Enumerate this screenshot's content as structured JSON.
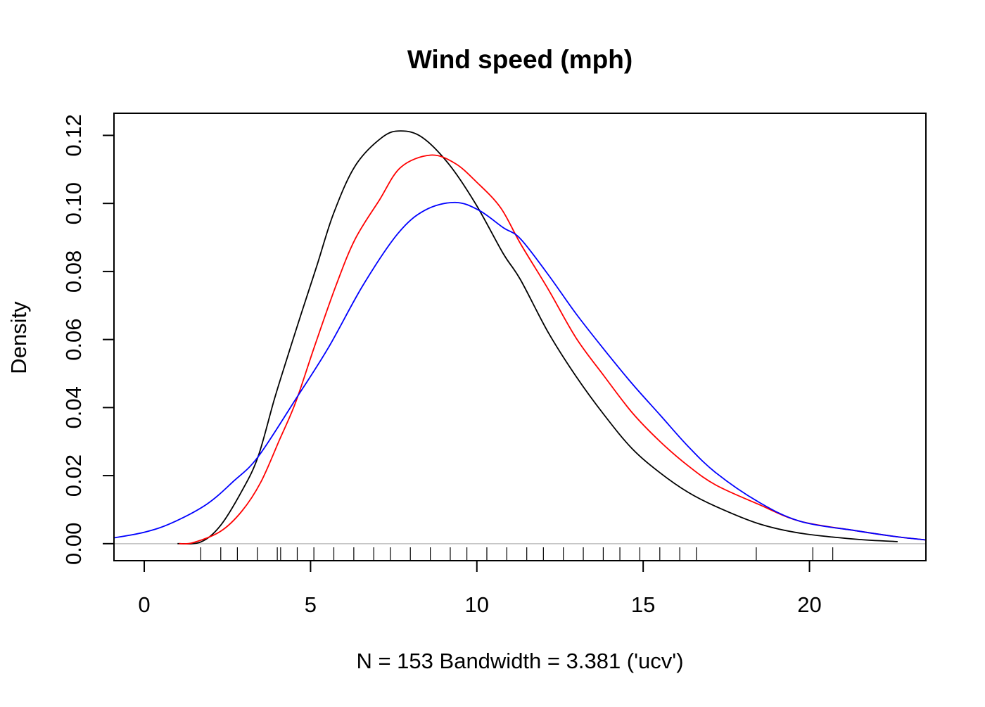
{
  "chart_data": {
    "type": "line",
    "title": "Wind speed (mph)",
    "xlabel": "N = 153   Bandwidth = 3.381 ('ucv')",
    "ylabel": "Density",
    "xlim": [
      -0.91,
      23.5
    ],
    "ylim": [
      -0.005,
      0.1265
    ],
    "x_ticks": [
      0,
      5,
      10,
      15,
      20
    ],
    "x_tick_labels": [
      "0",
      "5",
      "10",
      "15",
      "20"
    ],
    "y_ticks": [
      0,
      0.02,
      0.04,
      0.06,
      0.08,
      0.1,
      0.12
    ],
    "y_tick_labels": [
      "0.00",
      "0.02",
      "0.04",
      "0.06",
      "0.08",
      "0.10",
      "0.12"
    ],
    "grid": false,
    "zero_line_color": "#bebebe",
    "rug": [
      1.7,
      2.3,
      2.8,
      3.4,
      4.0,
      4.1,
      4.6,
      5.1,
      5.7,
      6.3,
      6.9,
      7.4,
      8.0,
      8.6,
      9.2,
      9.7,
      10.3,
      10.9,
      11.5,
      12.0,
      12.6,
      13.2,
      13.8,
      14.3,
      14.9,
      15.5,
      16.1,
      16.6,
      18.4,
      20.1,
      20.7
    ],
    "series": [
      {
        "color": "#000000",
        "points": [
          [
            1.0,
            0.0
          ],
          [
            1.7,
            0.0005
          ],
          [
            2.29,
            0.0053
          ],
          [
            2.93,
            0.0154
          ],
          [
            3.42,
            0.0255
          ],
          [
            3.91,
            0.0424
          ],
          [
            4.31,
            0.055
          ],
          [
            4.72,
            0.0676
          ],
          [
            5.2,
            0.082
          ],
          [
            5.69,
            0.097
          ],
          [
            6.34,
            0.111
          ],
          [
            7.15,
            0.1194
          ],
          [
            7.71,
            0.1213
          ],
          [
            8.36,
            0.1194
          ],
          [
            9.17,
            0.1114
          ],
          [
            9.98,
            0.0996
          ],
          [
            10.79,
            0.0853
          ],
          [
            11.31,
            0.0776
          ],
          [
            12.15,
            0.062
          ],
          [
            12.98,
            0.0492
          ],
          [
            13.83,
            0.0378
          ],
          [
            14.67,
            0.0279
          ],
          [
            15.51,
            0.0208
          ],
          [
            16.35,
            0.0151
          ],
          [
            17.19,
            0.0109
          ],
          [
            18.46,
            0.0059
          ],
          [
            19.71,
            0.0031
          ],
          [
            21.4,
            0.0013
          ],
          [
            22.65,
            0.0006
          ]
        ]
      },
      {
        "color": "#ff0000",
        "points": [
          [
            1.05,
            0.0
          ],
          [
            1.47,
            0.0003
          ],
          [
            2.29,
            0.0036
          ],
          [
            2.93,
            0.0095
          ],
          [
            3.5,
            0.018
          ],
          [
            4.07,
            0.0306
          ],
          [
            4.55,
            0.0415
          ],
          [
            5.12,
            0.058
          ],
          [
            5.77,
            0.076
          ],
          [
            6.34,
            0.0895
          ],
          [
            7.07,
            0.101
          ],
          [
            7.71,
            0.1106
          ],
          [
            8.61,
            0.1142
          ],
          [
            9.34,
            0.1118
          ],
          [
            9.98,
            0.1064
          ],
          [
            10.71,
            0.0988
          ],
          [
            11.31,
            0.0882
          ],
          [
            12.15,
            0.0747
          ],
          [
            12.98,
            0.0605
          ],
          [
            13.83,
            0.0492
          ],
          [
            14.67,
            0.0385
          ],
          [
            15.51,
            0.03
          ],
          [
            16.35,
            0.0229
          ],
          [
            17.19,
            0.0172
          ],
          [
            18.46,
            0.0116
          ],
          [
            19.71,
            0.0066
          ],
          [
            21.4,
            0.0038
          ],
          [
            22.65,
            0.002
          ],
          [
            23.5,
            0.0011
          ]
        ]
      },
      {
        "color": "#0000ff",
        "points": [
          [
            -0.91,
            0.0017
          ],
          [
            0.02,
            0.0034
          ],
          [
            0.83,
            0.0061
          ],
          [
            1.88,
            0.0116
          ],
          [
            2.69,
            0.0184
          ],
          [
            3.42,
            0.0255
          ],
          [
            4.55,
            0.0424
          ],
          [
            5.53,
            0.0575
          ],
          [
            6.58,
            0.076
          ],
          [
            7.63,
            0.0912
          ],
          [
            8.44,
            0.098
          ],
          [
            9.34,
            0.1003
          ],
          [
            10.06,
            0.098
          ],
          [
            10.79,
            0.0929
          ],
          [
            11.31,
            0.0896
          ],
          [
            12.15,
            0.079
          ],
          [
            12.98,
            0.0676
          ],
          [
            13.83,
            0.057
          ],
          [
            14.67,
            0.047
          ],
          [
            15.51,
            0.0378
          ],
          [
            16.35,
            0.0286
          ],
          [
            17.19,
            0.0208
          ],
          [
            18.46,
            0.0123
          ],
          [
            19.71,
            0.0066
          ],
          [
            21.4,
            0.0038
          ],
          [
            22.65,
            0.002
          ],
          [
            23.5,
            0.0011
          ]
        ]
      }
    ]
  }
}
